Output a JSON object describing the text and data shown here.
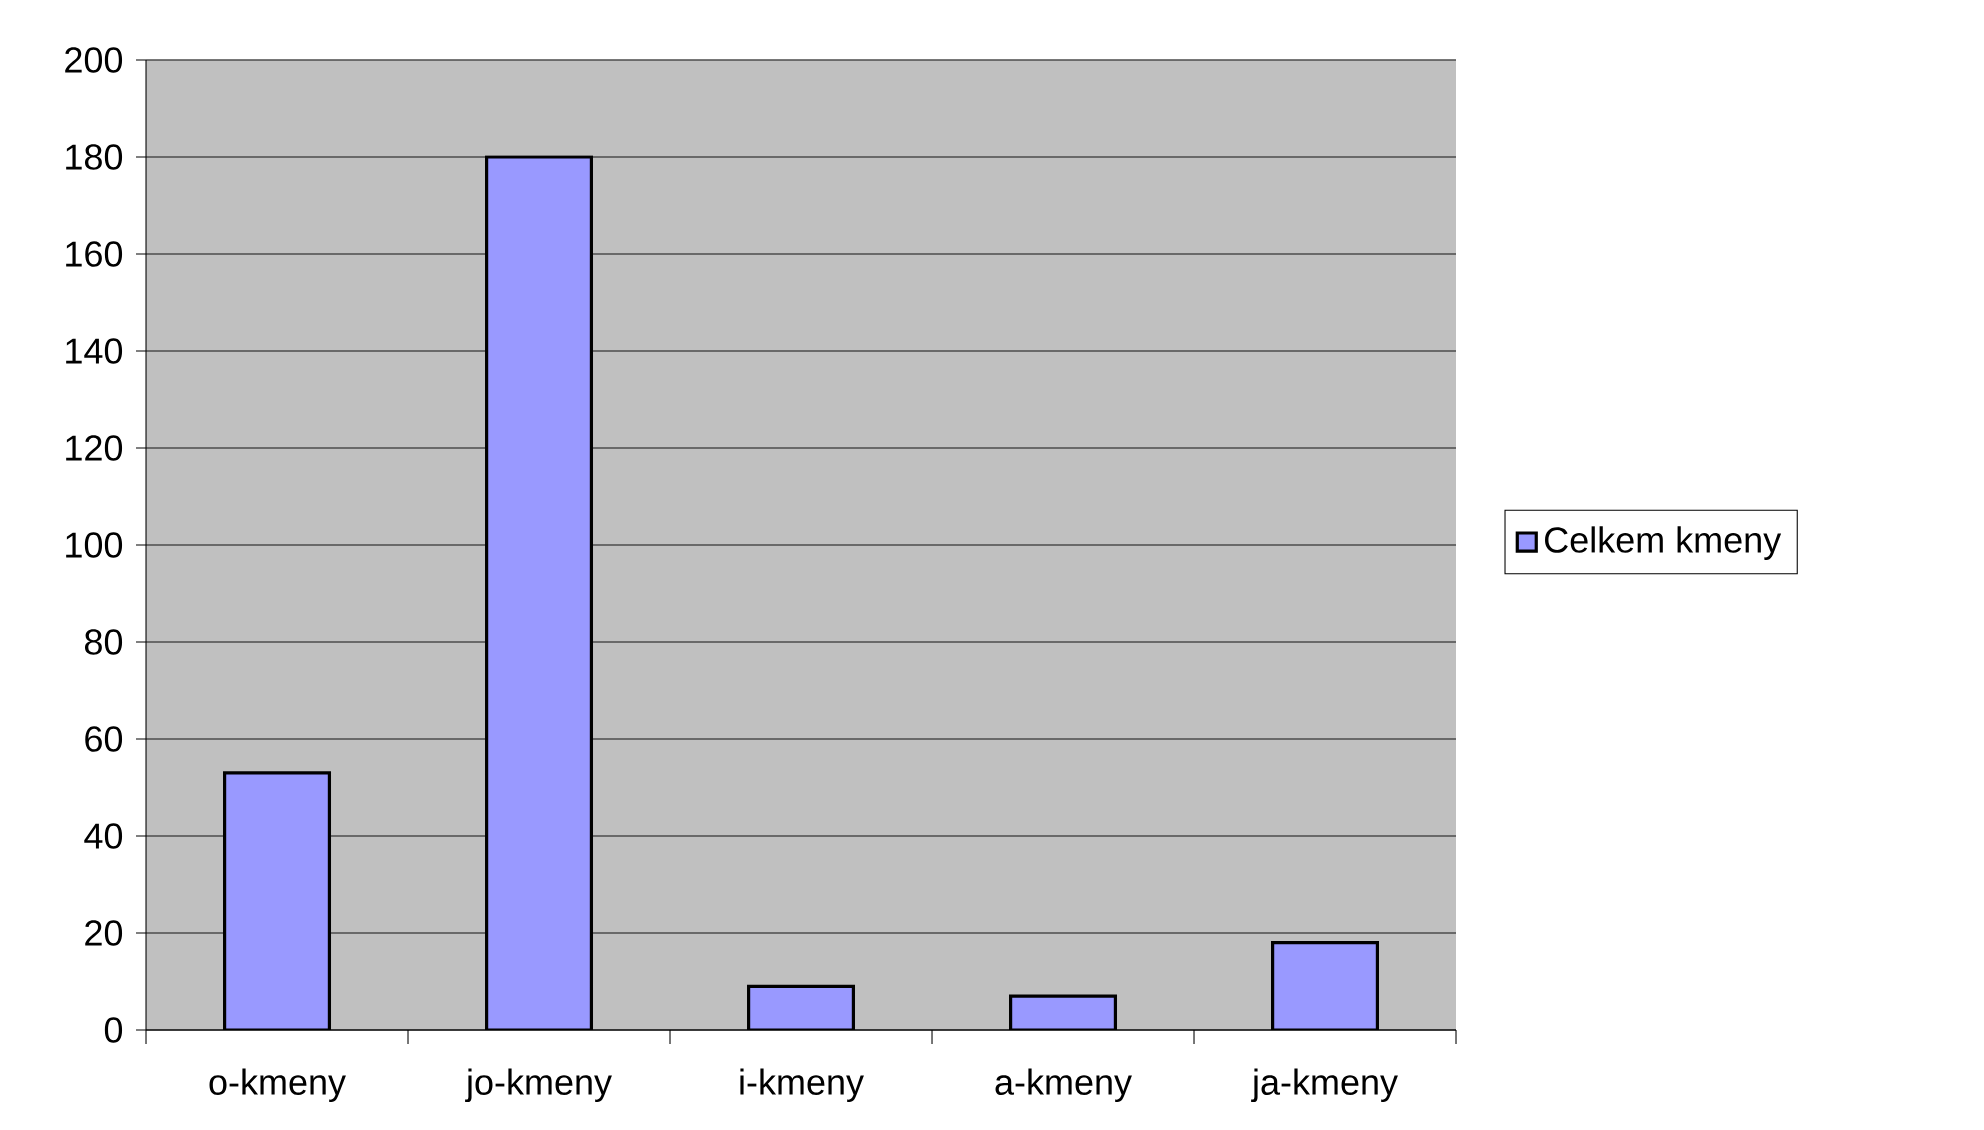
{
  "chart_data": {
    "type": "bar",
    "categories": [
      "o-kmeny",
      "jo-kmeny",
      "i-kmeny",
      "a-kmeny",
      "ja-kmeny"
    ],
    "series": [
      {
        "name": "Celkem kmeny",
        "color": "#9999ff",
        "values": [
          53,
          180,
          9,
          7,
          18
        ]
      }
    ],
    "ylim": [
      0,
      200
    ],
    "yticks": [
      0,
      20,
      40,
      60,
      80,
      100,
      120,
      140,
      160,
      180,
      200
    ],
    "grid": "y",
    "legend": "right"
  }
}
